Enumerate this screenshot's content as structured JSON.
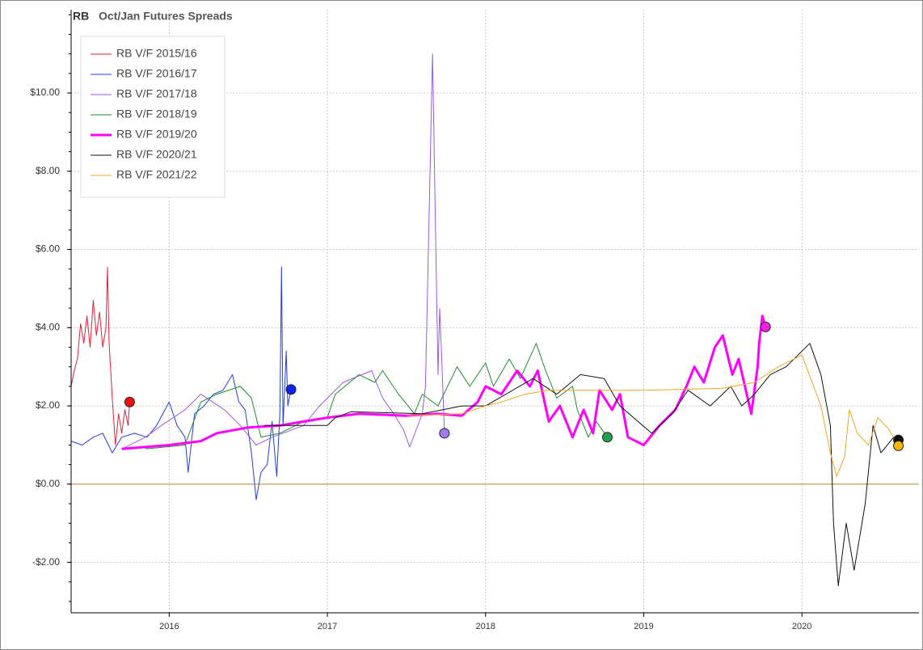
{
  "chart_data": {
    "type": "line",
    "title": "RB",
    "subtitle": "Oct/Jan Futures Spreads",
    "xlim": [
      2015.38,
      2020.74
    ],
    "xticks": [
      2016,
      2017,
      2018,
      2019,
      2020
    ],
    "ylim": [
      -3.29,
      12.13
    ],
    "yticks": [
      {
        "value": -2,
        "label": "-$2.00"
      },
      {
        "value": 0,
        "label": "$0.00"
      },
      {
        "value": 2,
        "label": "$2.00"
      },
      {
        "value": 4,
        "label": "$4.00"
      },
      {
        "value": 6,
        "label": "$6.00"
      },
      {
        "value": 8,
        "label": "$8.00"
      },
      {
        "value": 10,
        "label": "$10.00"
      }
    ],
    "grid": true,
    "legend": "upper left",
    "hline": {
      "value": 0,
      "color": "#c08a2a"
    },
    "series": [
      {
        "name": "RB V/F 2015/16",
        "color": "#e0203a",
        "marker_color": "#ee1111",
        "width": 1,
        "x": [
          2015.38,
          2015.4,
          2015.42,
          2015.44,
          2015.46,
          2015.48,
          2015.5,
          2015.52,
          2015.54,
          2015.56,
          2015.58,
          2015.6,
          2015.61,
          2015.62,
          2015.64,
          2015.66,
          2015.68,
          2015.7,
          2015.72,
          2015.74,
          2015.75
        ],
        "values": [
          2.5,
          2.9,
          3.2,
          4.1,
          3.6,
          4.3,
          3.5,
          4.7,
          3.8,
          4.4,
          3.5,
          4.0,
          5.55,
          3.6,
          2.2,
          1.0,
          1.8,
          1.3,
          1.9,
          1.5,
          2.1
        ]
      },
      {
        "name": "RB V/F 2016/17",
        "color": "#1f3fe0",
        "marker_color": "#1122ee",
        "width": 1,
        "x": [
          2015.38,
          2015.45,
          2015.52,
          2015.58,
          2015.64,
          2015.7,
          2015.78,
          2015.86,
          2015.92,
          2016.0,
          2016.05,
          2016.1,
          2016.12,
          2016.16,
          2016.22,
          2016.28,
          2016.34,
          2016.4,
          2016.44,
          2016.48,
          2016.52,
          2016.55,
          2016.58,
          2016.62,
          2016.65,
          2016.68,
          2016.7,
          2016.71,
          2016.72,
          2016.74,
          2016.75,
          2016.77
        ],
        "values": [
          1.1,
          1.0,
          1.2,
          1.3,
          0.8,
          1.2,
          1.3,
          1.2,
          1.5,
          2.1,
          1.5,
          1.2,
          0.3,
          1.8,
          2.0,
          2.3,
          2.4,
          2.8,
          2.1,
          1.9,
          0.8,
          -0.4,
          0.3,
          0.5,
          1.6,
          0.2,
          1.8,
          5.55,
          1.5,
          3.4,
          2.0,
          2.42
        ]
      },
      {
        "name": "RB V/F 2017/18",
        "color": "#9b59e6",
        "marker_color": "#a37cf0",
        "width": 1,
        "x": [
          2015.7,
          2015.85,
          2015.95,
          2016.1,
          2016.2,
          2016.35,
          2016.45,
          2016.55,
          2016.65,
          2016.85,
          2016.95,
          2017.1,
          2017.28,
          2017.35,
          2017.42,
          2017.48,
          2017.52,
          2017.6,
          2017.62,
          2017.665,
          2017.69,
          2017.7,
          2017.71,
          2017.72,
          2017.74
        ],
        "values": [
          0.9,
          1.2,
          1.5,
          1.9,
          2.3,
          1.9,
          1.5,
          1.0,
          1.2,
          1.5,
          2.0,
          2.6,
          2.9,
          2.2,
          1.8,
          1.4,
          0.95,
          1.8,
          2.5,
          11.0,
          5.0,
          2.8,
          4.5,
          3.5,
          1.3
        ]
      },
      {
        "name": "RB V/F 2018/19",
        "color": "#1e8c2e",
        "marker_color": "#22a050",
        "width": 1,
        "x": [
          2015.85,
          2016.1,
          2016.2,
          2016.3,
          2016.45,
          2016.52,
          2016.58,
          2016.7,
          2016.85,
          2017.0,
          2017.05,
          2017.2,
          2017.3,
          2017.35,
          2017.45,
          2017.55,
          2017.6,
          2017.7,
          2017.82,
          2017.9,
          2018.0,
          2018.05,
          2018.15,
          2018.22,
          2018.32,
          2018.38,
          2018.45,
          2018.55,
          2018.58,
          2018.65,
          2018.7,
          2018.77
        ],
        "values": [
          0.9,
          1.0,
          2.1,
          2.3,
          2.5,
          2.2,
          1.2,
          1.3,
          1.6,
          1.7,
          2.3,
          2.8,
          2.6,
          2.9,
          2.3,
          1.8,
          2.3,
          2.0,
          3.0,
          2.5,
          3.1,
          2.5,
          3.2,
          2.7,
          3.6,
          2.9,
          2.2,
          2.5,
          1.9,
          1.2,
          1.6,
          1.2
        ]
      },
      {
        "name": "RB V/F 2019/20",
        "color": "#ff00ff",
        "marker_color": "#ee22dd",
        "width": 3,
        "x": [
          2015.7,
          2016.0,
          2016.2,
          2016.3,
          2016.5,
          2016.7,
          2016.85,
          2017.0,
          2017.2,
          2017.5,
          2017.7,
          2017.85,
          2017.95,
          2018.0,
          2018.1,
          2018.2,
          2018.28,
          2018.33,
          2018.4,
          2018.47,
          2018.55,
          2018.62,
          2018.68,
          2018.72,
          2018.8,
          2018.85,
          2018.9,
          2019.0,
          2019.1,
          2019.2,
          2019.27,
          2019.32,
          2019.38,
          2019.45,
          2019.5,
          2019.56,
          2019.6,
          2019.64,
          2019.68,
          2019.72,
          2019.73,
          2019.75,
          2019.77
        ],
        "values": [
          0.9,
          1.0,
          1.1,
          1.3,
          1.45,
          1.5,
          1.6,
          1.7,
          1.8,
          1.75,
          1.8,
          1.75,
          2.1,
          2.5,
          2.3,
          2.9,
          2.5,
          2.9,
          1.6,
          2.0,
          1.2,
          1.9,
          1.3,
          2.4,
          1.9,
          2.3,
          1.2,
          1.0,
          1.5,
          1.9,
          2.5,
          3.0,
          2.6,
          3.5,
          3.8,
          2.8,
          3.2,
          2.5,
          1.8,
          3.0,
          3.6,
          4.3,
          4.02
        ]
      },
      {
        "name": "RB V/F 2020/21",
        "color": "#111111",
        "marker_color": "#111111",
        "width": 1,
        "x": [
          2016.6,
          2017.0,
          2017.05,
          2017.15,
          2017.6,
          2017.85,
          2018.0,
          2018.3,
          2018.45,
          2018.6,
          2018.75,
          2018.85,
          2019.05,
          2019.18,
          2019.28,
          2019.42,
          2019.55,
          2019.62,
          2019.7,
          2019.8,
          2019.9,
          2020.05,
          2020.12,
          2020.18,
          2020.2,
          2020.23,
          2020.28,
          2020.33,
          2020.4,
          2020.45,
          2020.5,
          2020.58,
          2020.61
        ],
        "values": [
          1.5,
          1.5,
          1.7,
          1.85,
          1.8,
          2.0,
          2.0,
          2.7,
          2.3,
          2.8,
          2.7,
          2.0,
          1.3,
          1.8,
          2.4,
          2.0,
          2.5,
          2.0,
          2.3,
          2.8,
          3.0,
          3.6,
          2.8,
          1.5,
          -1.0,
          -2.6,
          -1.0,
          -2.2,
          -0.5,
          1.5,
          0.8,
          1.2,
          1.13
        ]
      },
      {
        "name": "RB V/F 2021/22",
        "color": "#f5a623",
        "marker_color": "#f5b800",
        "width": 1,
        "x": [
          2017.5,
          2017.85,
          2018.0,
          2018.1,
          2018.25,
          2018.4,
          2019.0,
          2019.5,
          2019.7,
          2019.85,
          2020.0,
          2020.12,
          2020.18,
          2020.22,
          2020.27,
          2020.3,
          2020.35,
          2020.42,
          2020.48,
          2020.55,
          2020.61
        ],
        "values": [
          1.75,
          1.8,
          2.0,
          2.1,
          2.3,
          2.4,
          2.4,
          2.45,
          2.6,
          3.0,
          3.3,
          2.0,
          0.8,
          0.2,
          0.7,
          1.9,
          1.3,
          1.0,
          1.7,
          1.4,
          0.98
        ]
      }
    ]
  }
}
